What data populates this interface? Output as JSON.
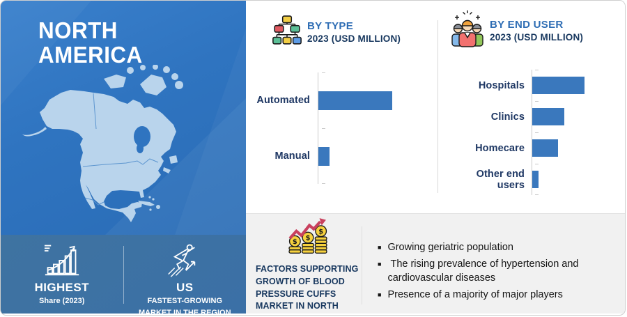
{
  "colors": {
    "panel_blue": "#2F74C0",
    "panel_blue_dark": "#3B70A6",
    "map_fill": "#B9D4EC",
    "bar_blue": "#3A78BD",
    "header_blue": "#2E6DB4",
    "navy": "#1F3864",
    "bottom_panel_gray": "#F1F1F1"
  },
  "left_panel": {
    "region_title": "NORTH AMERICA",
    "map_icon": "north-america-map",
    "stats": [
      {
        "icon": "growth-chart-icon",
        "label": "HIGHEST",
        "sublabel": "Share (2023)"
      },
      {
        "icon": "runner-icon",
        "label": "US",
        "sublabel": "FASTEST-GROWING MARKET IN THE REGION"
      }
    ]
  },
  "chart_data": [
    {
      "id": "by_type",
      "type": "bar",
      "orientation": "horizontal",
      "icon": "hierarchy-icon",
      "title": "BY TYPE",
      "subtitle": "2023 (USD MILLION)",
      "categories": [
        "Automated",
        "Manual"
      ],
      "values": [
        100,
        15
      ],
      "unit": "relative bar length, % of longest bar (no numeric labels shown in chart)",
      "bar_color": "#3A78BD",
      "grid": false,
      "legend": false
    },
    {
      "id": "by_end_user",
      "type": "bar",
      "orientation": "horizontal",
      "icon": "people-group-icon",
      "title": "BY END USER",
      "subtitle": "2023 (USD MILLION)",
      "categories": [
        "Hospitals",
        "Clinics",
        "Homecare",
        "Other end users"
      ],
      "values": [
        100,
        61,
        49,
        12
      ],
      "unit": "relative bar length, % of longest bar (no numeric labels shown in chart)",
      "bar_color": "#3A78BD",
      "grid": false,
      "legend": false
    }
  ],
  "factors": {
    "icon": "coins-growth-icon",
    "title": "FACTORS SUPPORTING GROWTH OF BLOOD PRESSURE CUFFS MARKET IN NORTH AMERICA",
    "bullets": [
      "Growing geriatric population",
      " The rising prevalence of hypertension and cardiovascular diseases",
      "Presence of a majority of major players"
    ]
  }
}
